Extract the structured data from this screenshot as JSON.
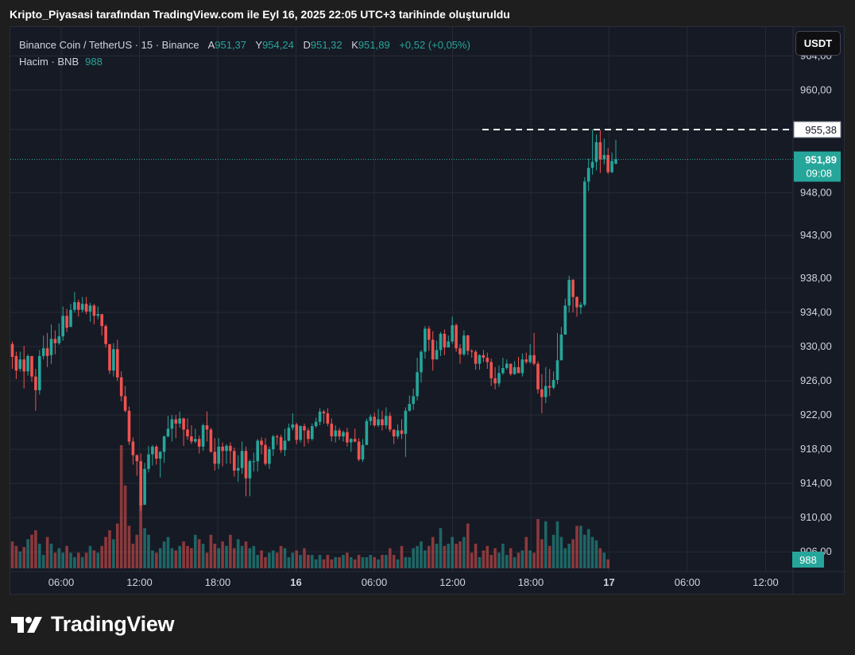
{
  "caption": "Kripto_Piyasasi tarafından TradingView.com ile Eyl 16, 2025 22:05 UTC+3 tarihinde oluşturuldu",
  "legend": {
    "symbol": "Binance Coin / TetherUS · 15 · Binance",
    "open_label": "A",
    "open_value": "951,37",
    "high_label": "Y",
    "high_value": "954,24",
    "low_label": "D",
    "low_value": "951,32",
    "close_label": "K",
    "close_value": "951,89",
    "change": "+0,52 (+0,05%)",
    "volume_line_label": "Hacim · BNB",
    "volume_value": "988"
  },
  "currency_button": "USDT",
  "brand": "TradingView",
  "colors": {
    "up": "#26a69a",
    "down": "#ef5350",
    "background": "#161a25",
    "grid": "#262a35",
    "text": "#d1d4dc"
  },
  "chart_data": {
    "type": "candlestick",
    "price_axis_labels": [
      "964,00",
      "960,00",
      "955,38",
      "948,00",
      "943,00",
      "938,00",
      "934,00",
      "930,00",
      "926,00",
      "922,00",
      "918,00",
      "914,00",
      "910,00",
      "906,00"
    ],
    "time_axis_labels": [
      "06:00",
      "12:00",
      "18:00",
      "16",
      "06:00",
      "12:00",
      "18:00",
      "17",
      "06:00",
      "12:00"
    ],
    "ylim": [
      905,
      967
    ],
    "last_price": "951,89",
    "last_price_countdown": "09:08",
    "high_line_price": "955,38",
    "volume_label": "988",
    "candles": [
      [
        930.3,
        928.8,
        930.6,
        927.4
      ],
      [
        928.9,
        927.2,
        929.4,
        926.2
      ],
      [
        927.4,
        928.5,
        929.4,
        927.1
      ],
      [
        928.5,
        927.1,
        930.1,
        925.1
      ],
      [
        927.1,
        928.9,
        929.1,
        926.6
      ],
      [
        928.9,
        926.5,
        928.9,
        925.9
      ],
      [
        926.5,
        924.9,
        927.4,
        922.5
      ],
      [
        924.9,
        928.9,
        929.6,
        924.4
      ],
      [
        928.9,
        929.8,
        931.3,
        928.5
      ],
      [
        929.8,
        928.9,
        931.6,
        927.6
      ],
      [
        929.0,
        930.9,
        932.6,
        928.0
      ],
      [
        930.9,
        930.4,
        931.9,
        929.1
      ],
      [
        930.4,
        931.2,
        932.7,
        930.2
      ],
      [
        931.2,
        933.6,
        934.7,
        930.7
      ],
      [
        933.6,
        932.2,
        934.4,
        931.7
      ],
      [
        932.3,
        934.3,
        935.0,
        933.0
      ],
      [
        934.3,
        935.2,
        936.4,
        934.0
      ],
      [
        935.2,
        934.3,
        935.5,
        933.5
      ],
      [
        934.3,
        935.0,
        935.8,
        934.0
      ],
      [
        935.0,
        934.1,
        935.8,
        933.8
      ],
      [
        934.1,
        934.8,
        935.1,
        932.9
      ],
      [
        934.8,
        933.6,
        935.0,
        932.6
      ],
      [
        933.6,
        933.8,
        934.7,
        933.2
      ],
      [
        933.8,
        932.4,
        933.8,
        931.3
      ],
      [
        932.4,
        930.3,
        932.6,
        929.9
      ],
      [
        930.3,
        927.2,
        930.3,
        926.8
      ],
      [
        927.2,
        929.7,
        930.4,
        926.5
      ],
      [
        929.7,
        926.4,
        930.8,
        926.0
      ],
      [
        926.4,
        924.2,
        927.1,
        923.6
      ],
      [
        924.2,
        922.5,
        925.4,
        922.3
      ],
      [
        922.5,
        918.9,
        923.0,
        918.5
      ],
      [
        918.9,
        917.3,
        919.4,
        916.2
      ],
      [
        917.3,
        916.6,
        917.4,
        914.9
      ],
      [
        916.6,
        911.4,
        917.5,
        910.8
      ],
      [
        911.5,
        915.7,
        916.4,
        911.5
      ],
      [
        915.7,
        917.4,
        918.4,
        915.3
      ],
      [
        917.4,
        918.3,
        918.5,
        916.1
      ],
      [
        918.3,
        916.9,
        918.5,
        916.2
      ],
      [
        916.9,
        917.7,
        917.8,
        914.7
      ],
      [
        917.7,
        919.5,
        919.6,
        916.4
      ],
      [
        919.5,
        920.4,
        921.9,
        919.4
      ],
      [
        920.4,
        921.5,
        922.0,
        918.9
      ],
      [
        921.5,
        921.0,
        922.0,
        919.3
      ],
      [
        921.0,
        921.6,
        922.4,
        920.5
      ],
      [
        921.6,
        920.3,
        921.7,
        918.4
      ],
      [
        920.3,
        919.5,
        921.6,
        919.1
      ],
      [
        919.5,
        918.9,
        920.8,
        918.6
      ],
      [
        918.9,
        919.2,
        920.4,
        918.7
      ],
      [
        919.2,
        918.3,
        919.6,
        917.5
      ],
      [
        918.3,
        920.8,
        921.0,
        917.8
      ],
      [
        920.8,
        920.3,
        922.4,
        918.9
      ],
      [
        920.3,
        917.7,
        920.5,
        917.6
      ],
      [
        917.7,
        916.3,
        919.3,
        915.5
      ],
      [
        916.3,
        918.3,
        919.3,
        915.7
      ],
      [
        918.3,
        917.8,
        918.8,
        916.0
      ],
      [
        917.8,
        918.4,
        918.6,
        916.3
      ],
      [
        918.4,
        917.8,
        918.8,
        916.3
      ],
      [
        917.8,
        915.5,
        918.2,
        914.8
      ],
      [
        915.5,
        915.8,
        917.3,
        914.2
      ],
      [
        915.8,
        917.8,
        918.9,
        915.1
      ],
      [
        917.8,
        914.6,
        918.3,
        912.5
      ],
      [
        914.6,
        916.6,
        916.8,
        912.5
      ],
      [
        916.6,
        916.6,
        917.6,
        915.4
      ],
      [
        916.6,
        919.0,
        919.2,
        915.4
      ],
      [
        919.0,
        918.5,
        919.4,
        917.4
      ],
      [
        918.5,
        916.3,
        919.3,
        916.1
      ],
      [
        916.3,
        918.0,
        918.3,
        915.7
      ],
      [
        918.0,
        919.5,
        919.7,
        917.2
      ],
      [
        919.5,
        919.4,
        919.7,
        918.5
      ],
      [
        919.4,
        917.9,
        919.7,
        917.6
      ],
      [
        917.9,
        919.0,
        920.4,
        917.2
      ],
      [
        919.0,
        920.5,
        921.0,
        918.9
      ],
      [
        920.5,
        920.9,
        922.2,
        920.2
      ],
      [
        920.9,
        919.1,
        921.1,
        918.6
      ],
      [
        919.1,
        920.7,
        920.8,
        918.8
      ],
      [
        920.7,
        920.2,
        921.0,
        918.3
      ],
      [
        920.2,
        919.2,
        920.5,
        918.7
      ],
      [
        919.2,
        920.7,
        921.0,
        919.0
      ],
      [
        920.7,
        921.2,
        921.7,
        920.5
      ],
      [
        921.2,
        922.4,
        922.8,
        920.8
      ],
      [
        922.4,
        922.2,
        922.6,
        921.0
      ],
      [
        922.2,
        921.0,
        922.8,
        920.7
      ],
      [
        921.0,
        919.5,
        921.6,
        918.9
      ],
      [
        919.5,
        920.2,
        920.8,
        918.8
      ],
      [
        920.2,
        919.5,
        920.5,
        919.1
      ],
      [
        919.5,
        920.0,
        920.2,
        918.9
      ],
      [
        920.0,
        918.8,
        920.5,
        918.3
      ],
      [
        918.8,
        919.2,
        919.3,
        917.7
      ],
      [
        919.2,
        918.9,
        920.4,
        918.8
      ],
      [
        918.9,
        916.8,
        919.3,
        916.6
      ],
      [
        916.8,
        918.5,
        919.2,
        916.5
      ],
      [
        918.5,
        921.3,
        921.6,
        918.5
      ],
      [
        921.3,
        921.8,
        922.1,
        920.8
      ],
      [
        921.8,
        920.8,
        922.3,
        920.6
      ],
      [
        920.8,
        921.5,
        922.7,
        920.6
      ],
      [
        921.5,
        920.8,
        922.5,
        920.2
      ],
      [
        920.8,
        921.9,
        922.9,
        920.4
      ],
      [
        921.9,
        920.3,
        922.3,
        920.0
      ],
      [
        920.3,
        919.5,
        920.3,
        918.6
      ],
      [
        919.5,
        920.2,
        920.9,
        919.2
      ],
      [
        920.2,
        919.8,
        921.5,
        919.2
      ],
      [
        919.8,
        922.5,
        922.9,
        917.1
      ],
      [
        922.5,
        923.3,
        924.3,
        922.4
      ],
      [
        923.3,
        924.2,
        925.1,
        922.6
      ],
      [
        924.2,
        927.0,
        928.7,
        923.7
      ],
      [
        927.0,
        929.4,
        929.6,
        925.8
      ],
      [
        929.4,
        932.1,
        932.4,
        928.6
      ],
      [
        932.1,
        930.8,
        932.4,
        929.5
      ],
      [
        930.8,
        928.5,
        931.8,
        927.2
      ],
      [
        928.5,
        929.6,
        930.7,
        928.5
      ],
      [
        929.6,
        931.5,
        931.7,
        928.9
      ],
      [
        931.5,
        929.9,
        932.0,
        929.0
      ],
      [
        929.9,
        930.6,
        931.3,
        930.3
      ],
      [
        930.6,
        932.5,
        933.5,
        930.3
      ],
      [
        932.5,
        929.8,
        932.7,
        929.4
      ],
      [
        929.8,
        929.1,
        930.3,
        928.0
      ],
      [
        929.1,
        931.3,
        931.9,
        928.9
      ],
      [
        931.3,
        929.5,
        931.4,
        929.0
      ],
      [
        929.5,
        929.4,
        929.7,
        928.7
      ],
      [
        929.4,
        928.0,
        929.6,
        927.3
      ],
      [
        928.0,
        929.0,
        929.1,
        927.3
      ],
      [
        929.0,
        928.7,
        929.6,
        928.2
      ],
      [
        928.7,
        928.2,
        929.3,
        927.4
      ],
      [
        928.2,
        926.3,
        928.6,
        925.4
      ],
      [
        926.3,
        925.7,
        927.6,
        925.0
      ],
      [
        925.7,
        926.9,
        927.8,
        925.3
      ],
      [
        926.9,
        927.5,
        928.7,
        926.7
      ],
      [
        927.5,
        928.0,
        928.5,
        927.3
      ],
      [
        928.0,
        926.8,
        928.0,
        926.6
      ],
      [
        926.8,
        927.6,
        928.3,
        926.7
      ],
      [
        927.6,
        926.9,
        928.8,
        926.9
      ],
      [
        926.9,
        928.5,
        929.2,
        926.5
      ],
      [
        928.5,
        928.2,
        929.3,
        928.0
      ],
      [
        928.2,
        929.0,
        930.3,
        928.0
      ],
      [
        929.0,
        928.0,
        931.6,
        927.8
      ],
      [
        928.0,
        925.0,
        928.3,
        924.5
      ],
      [
        925.0,
        924.1,
        926.8,
        922.2
      ],
      [
        924.1,
        925.4,
        927.6,
        923.4
      ],
      [
        925.4,
        925.2,
        927.4,
        924.2
      ],
      [
        925.2,
        926.1,
        927.1,
        925.0
      ],
      [
        926.1,
        928.4,
        931.6,
        925.6
      ],
      [
        928.4,
        931.4,
        932.3,
        928.4
      ],
      [
        931.4,
        934.8,
        935.6,
        931.4
      ],
      [
        934.8,
        937.8,
        938.3,
        934.0
      ],
      [
        937.8,
        935.8,
        937.9,
        934.0
      ],
      [
        935.8,
        934.6,
        935.9,
        933.5
      ],
      [
        934.6,
        934.9,
        935.2,
        933.8
      ],
      [
        934.9,
        949.3,
        949.8,
        934.7
      ],
      [
        949.3,
        950.9,
        952.0,
        948.2
      ],
      [
        950.9,
        951.6,
        955.4,
        950.1
      ],
      [
        951.6,
        953.9,
        954.8,
        950.6
      ],
      [
        953.9,
        951.9,
        955.3,
        950.3
      ],
      [
        951.9,
        952.4,
        954.3,
        951.3
      ],
      [
        952.4,
        950.4,
        953.2,
        950.2
      ],
      [
        950.4,
        951.7,
        952.7,
        950.3
      ],
      [
        951.4,
        951.9,
        954.2,
        951.3
      ]
    ],
    "volumes": [
      24,
      20,
      15,
      19,
      26,
      30,
      34,
      22,
      12,
      28,
      22,
      14,
      18,
      14,
      20,
      14,
      10,
      14,
      10,
      14,
      20,
      16,
      14,
      20,
      28,
      34,
      26,
      40,
      110,
      74,
      38,
      22,
      30,
      60,
      36,
      30,
      16,
      14,
      18,
      24,
      28,
      18,
      16,
      20,
      24,
      20,
      18,
      30,
      26,
      22,
      14,
      30,
      22,
      18,
      24,
      20,
      30,
      18,
      26,
      20,
      24,
      18,
      20,
      12,
      16,
      10,
      14,
      16,
      14,
      20,
      18,
      10,
      14,
      16,
      12,
      18,
      12,
      12,
      8,
      12,
      8,
      12,
      8,
      10,
      10,
      12,
      14,
      10,
      8,
      12,
      10,
      10,
      12,
      10,
      8,
      12,
      12,
      18,
      12,
      8,
      20,
      10,
      10,
      18,
      20,
      24,
      16,
      20,
      28,
      22,
      36,
      20,
      22,
      28,
      22,
      24,
      28,
      40,
      14,
      22,
      10,
      16,
      20,
      12,
      18,
      14,
      22,
      12,
      18,
      10,
      14,
      16,
      28,
      16,
      14,
      44,
      26,
      42,
      20,
      30,
      42,
      28,
      18,
      22,
      26,
      38,
      38,
      30,
      35,
      28,
      25,
      18,
      14,
      8
    ]
  }
}
